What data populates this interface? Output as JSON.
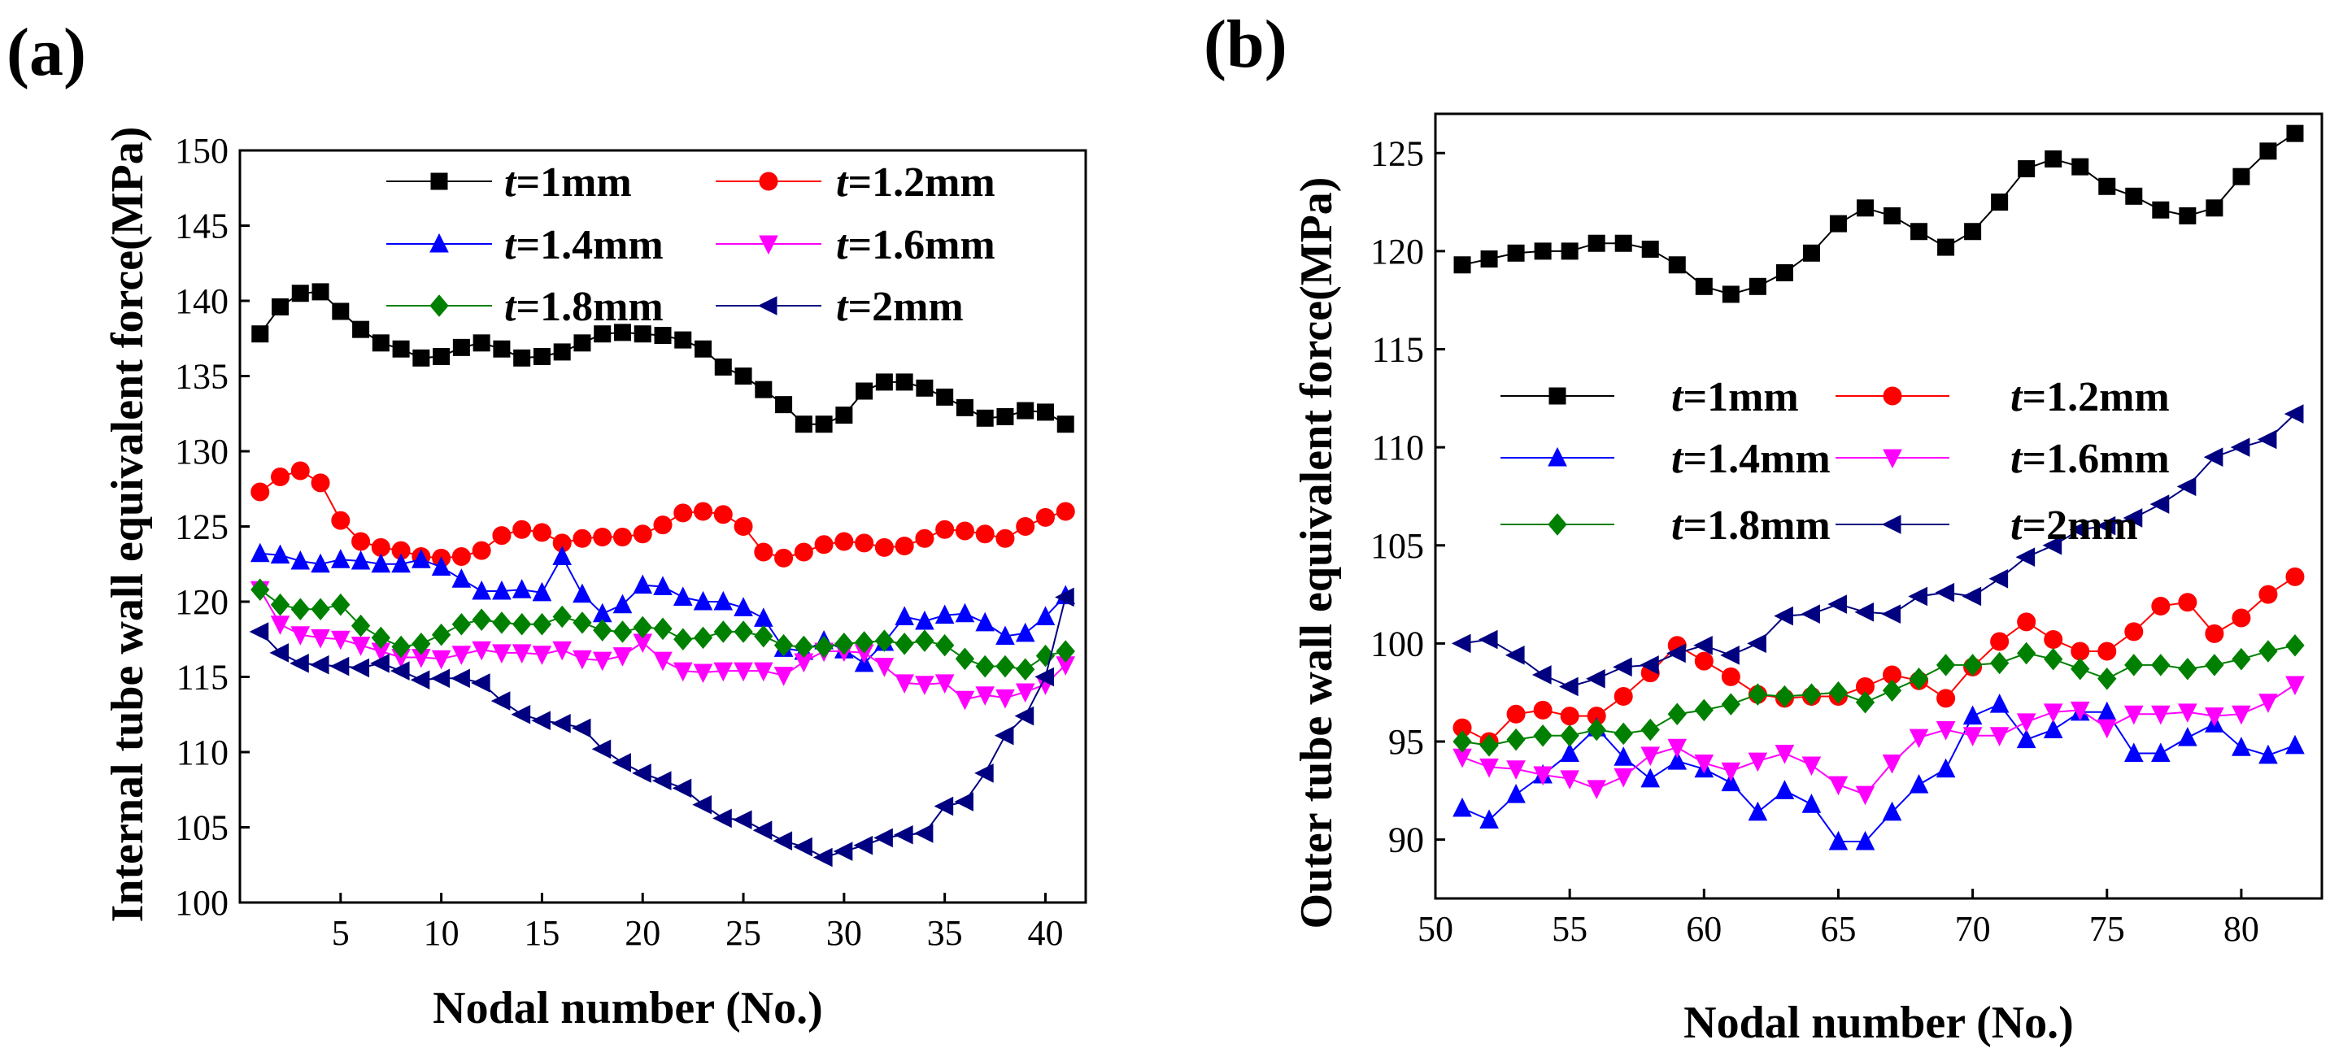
{
  "figure": {
    "colors": {
      "t1": "#000000",
      "t12": "#ff0000",
      "t14": "#0000ff",
      "t16": "#ff00ff",
      "t18": "#008000",
      "t2": "#000080"
    }
  },
  "chart_data": [
    {
      "type": "line",
      "panel_label": "(a)",
      "title": "",
      "xlabel": "Nodal number (No.)",
      "ylabel": "Internal tube wall equivalent force(MPa)",
      "xlim": [
        0,
        42
      ],
      "ylim": [
        100,
        150
      ],
      "xticks": [
        5,
        10,
        15,
        20,
        25,
        30,
        35,
        40
      ],
      "yticks": [
        100,
        105,
        110,
        115,
        120,
        125,
        130,
        135,
        140,
        145,
        150
      ],
      "legend_position": "top",
      "x_start": 1,
      "series": [
        {
          "name": "t=1mm",
          "label_var": "t",
          "label_rest": "=1mm",
          "marker": "square",
          "color": "#000000",
          "values": [
            137.8,
            139.6,
            140.5,
            140.6,
            139.3,
            138.1,
            137.2,
            136.8,
            136.2,
            136.3,
            136.9,
            137.2,
            136.8,
            136.2,
            136.3,
            136.6,
            137.2,
            137.8,
            137.9,
            137.8,
            137.7,
            137.4,
            136.8,
            135.6,
            135.0,
            134.1,
            133.1,
            131.8,
            131.8,
            132.4,
            134.0,
            134.6,
            134.6,
            134.2,
            133.6,
            132.9,
            132.2,
            132.3,
            132.7,
            132.6,
            131.8
          ]
        },
        {
          "name": "t=1.2mm",
          "label_var": "t",
          "label_rest": "=1.2mm",
          "marker": "circle",
          "color": "#ff0000",
          "values": [
            127.3,
            128.3,
            128.7,
            127.9,
            125.4,
            124.0,
            123.6,
            123.4,
            123.0,
            122.9,
            123.0,
            123.4,
            124.4,
            124.8,
            124.6,
            123.9,
            124.2,
            124.3,
            124.3,
            124.5,
            125.1,
            125.9,
            126.0,
            125.8,
            125.0,
            123.3,
            122.9,
            123.3,
            123.8,
            124.0,
            123.9,
            123.6,
            123.7,
            124.2,
            124.8,
            124.7,
            124.5,
            124.2,
            125.0,
            125.6,
            126.0
          ]
        },
        {
          "name": "t=1.4mm",
          "label_var": "t",
          "label_rest": "=1.4mm",
          "marker": "triangle-up",
          "color": "#0000ff",
          "values": [
            123.2,
            123.1,
            122.7,
            122.5,
            122.8,
            122.7,
            122.5,
            122.5,
            122.8,
            122.3,
            121.5,
            120.7,
            120.7,
            120.8,
            120.6,
            123.0,
            120.5,
            119.2,
            119.8,
            121.1,
            121.0,
            120.3,
            120.0,
            120.0,
            119.6,
            118.9,
            116.9,
            116.7,
            117.4,
            116.8,
            115.9,
            117.3,
            119.0,
            118.7,
            119.1,
            119.2,
            118.6,
            117.7,
            117.9,
            119.0,
            120.4
          ]
        },
        {
          "name": "t=1.6mm",
          "label_var": "t",
          "label_rest": "=1.6mm",
          "marker": "triangle-down",
          "color": "#ff00ff",
          "values": [
            120.8,
            118.5,
            117.8,
            117.6,
            117.5,
            117.1,
            116.7,
            116.3,
            116.3,
            116.2,
            116.5,
            116.8,
            116.6,
            116.6,
            116.5,
            116.8,
            116.2,
            116.1,
            116.4,
            117.3,
            116.1,
            115.4,
            115.3,
            115.4,
            115.4,
            115.4,
            115.1,
            116.0,
            116.7,
            116.7,
            116.6,
            115.7,
            114.6,
            114.5,
            114.6,
            113.5,
            113.8,
            113.6,
            114.0,
            114.5,
            115.8
          ]
        },
        {
          "name": "t=1.8mm",
          "label_var": "t",
          "label_rest": "=1.8mm",
          "marker": "diamond",
          "color": "#008000",
          "values": [
            120.8,
            119.8,
            119.5,
            119.5,
            119.8,
            118.4,
            117.6,
            117.0,
            117.2,
            117.8,
            118.5,
            118.8,
            118.6,
            118.5,
            118.5,
            119.0,
            118.6,
            118.1,
            118.0,
            118.3,
            118.2,
            117.5,
            117.6,
            118.0,
            118.0,
            117.7,
            117.1,
            117.0,
            117.0,
            117.2,
            117.3,
            117.4,
            117.2,
            117.4,
            117.1,
            116.2,
            115.7,
            115.7,
            115.5,
            116.4,
            116.7
          ]
        },
        {
          "name": "t=2mm",
          "label_var": "t",
          "label_rest": "=2mm",
          "marker": "triangle-left",
          "color": "#000080",
          "values": [
            118.0,
            116.6,
            115.9,
            115.8,
            115.7,
            115.6,
            115.9,
            115.4,
            114.8,
            114.9,
            114.9,
            114.6,
            113.4,
            112.5,
            112.1,
            111.9,
            111.6,
            110.2,
            109.3,
            108.6,
            108.1,
            107.6,
            106.5,
            105.6,
            105.5,
            104.8,
            104.1,
            103.7,
            103.0,
            103.4,
            103.8,
            104.3,
            104.5,
            104.6,
            106.4,
            106.7,
            108.6,
            111.1,
            112.4,
            115.0,
            120.3
          ]
        }
      ]
    },
    {
      "type": "line",
      "panel_label": "(b)",
      "title": "",
      "xlabel": "Nodal number (No.)",
      "ylabel": "Outer tube wall equivalent force(MPa)",
      "xlim": [
        50,
        83
      ],
      "ylim": [
        87,
        127
      ],
      "xticks": [
        50,
        55,
        60,
        65,
        70,
        75,
        80
      ],
      "yticks": [
        90,
        95,
        100,
        105,
        110,
        115,
        120,
        125
      ],
      "legend_position": "middle-left",
      "x_start": 51,
      "series": [
        {
          "name": "t=1mm",
          "label_var": "t",
          "label_rest": "=1mm",
          "marker": "square",
          "color": "#000000",
          "values": [
            119.3,
            119.6,
            119.9,
            120.0,
            120.0,
            120.4,
            120.4,
            120.1,
            119.3,
            118.2,
            117.8,
            118.2,
            118.9,
            119.9,
            121.4,
            122.2,
            121.8,
            121.0,
            120.2,
            121.0,
            122.5,
            124.2,
            124.7,
            124.3,
            123.3,
            122.8,
            122.1,
            121.8,
            122.2,
            123.8,
            125.1,
            126.0
          ]
        },
        {
          "name": "t=1.2mm",
          "label_var": "t",
          "label_rest": "=1.2mm",
          "marker": "circle",
          "color": "#ff0000",
          "values": [
            95.7,
            95.0,
            96.4,
            96.6,
            96.3,
            96.3,
            97.3,
            98.5,
            99.9,
            99.1,
            98.3,
            97.4,
            97.2,
            97.3,
            97.3,
            97.8,
            98.4,
            98.1,
            97.2,
            98.8,
            100.1,
            101.1,
            100.2,
            99.6,
            99.6,
            100.6,
            101.9,
            102.1,
            100.5,
            101.3,
            102.5,
            103.4
          ]
        },
        {
          "name": "t=1.4mm",
          "label_var": "t",
          "label_rest": "=1.4mm",
          "marker": "triangle-up",
          "color": "#0000ff",
          "values": [
            91.6,
            91.0,
            92.3,
            93.3,
            94.4,
            95.7,
            94.2,
            93.1,
            94.0,
            93.6,
            92.9,
            91.4,
            92.5,
            91.8,
            89.9,
            89.9,
            91.4,
            92.8,
            93.6,
            96.3,
            96.9,
            95.1,
            95.6,
            96.5,
            96.5,
            94.4,
            94.4,
            95.2,
            95.9,
            94.7,
            94.3,
            94.8
          ]
        },
        {
          "name": "t=1.6mm",
          "label_var": "t",
          "label_rest": "=1.6mm",
          "marker": "triangle-down",
          "color": "#ff00ff",
          "values": [
            94.2,
            93.7,
            93.6,
            93.3,
            93.1,
            92.6,
            93.2,
            94.3,
            94.7,
            93.9,
            93.5,
            94.0,
            94.4,
            93.8,
            92.8,
            92.3,
            93.9,
            95.2,
            95.6,
            95.3,
            95.3,
            96.0,
            96.5,
            96.6,
            95.7,
            96.4,
            96.4,
            96.5,
            96.3,
            96.4,
            97.0,
            97.9
          ]
        },
        {
          "name": "t=1.8mm",
          "label_var": "t",
          "label_rest": "=1.8mm",
          "marker": "diamond",
          "color": "#008000",
          "values": [
            95.0,
            94.8,
            95.1,
            95.3,
            95.3,
            95.6,
            95.4,
            95.6,
            96.4,
            96.6,
            96.9,
            97.4,
            97.3,
            97.4,
            97.5,
            97.0,
            97.6,
            98.2,
            98.9,
            98.9,
            99.0,
            99.5,
            99.2,
            98.7,
            98.2,
            98.9,
            98.9,
            98.7,
            98.9,
            99.2,
            99.6,
            99.9
          ]
        },
        {
          "name": "t=2mm",
          "label_var": "t",
          "label_rest": "=2mm",
          "marker": "triangle-left",
          "color": "#000080",
          "values": [
            100.0,
            100.2,
            99.4,
            98.4,
            97.8,
            98.2,
            98.8,
            98.9,
            99.5,
            99.9,
            99.4,
            100.0,
            101.4,
            101.5,
            102.0,
            101.6,
            101.5,
            102.4,
            102.6,
            102.4,
            103.3,
            104.4,
            105.0,
            105.8,
            106.0,
            106.4,
            107.1,
            108.0,
            109.5,
            110.0,
            110.4,
            111.7
          ]
        }
      ]
    }
  ]
}
